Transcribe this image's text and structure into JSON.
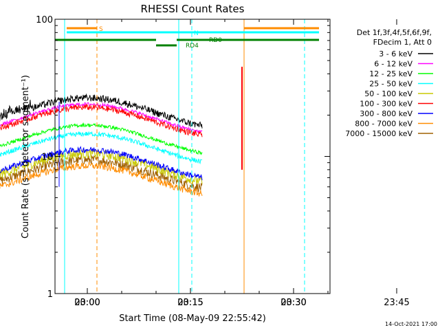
{
  "chart_data": {
    "type": "line",
    "title": "RHESSI Count Rates",
    "xlabel": "Start Time (08-May-09 22:55:42)",
    "ylabel": "Count Rate (s⁻¹ detector segment⁻¹)",
    "yscale": "log",
    "ylim": [
      1,
      100
    ],
    "xlim_minutes": [
      -4.7,
      35.3
    ],
    "x_unit": "minutes relative to 2009-05-09 00:00 UT",
    "x_ticks": [
      {
        "label": "23:00",
        "m": -60
      },
      {
        "label": "23:15",
        "m": -45
      },
      {
        "label": "23:30",
        "m": -30
      },
      {
        "label": "23:45",
        "m": -15
      },
      {
        "label": "00:00",
        "m": 0
      },
      {
        "label": "00:15",
        "m": 15
      },
      {
        "label": "00:30",
        "m": 30
      }
    ],
    "y_ticks": [
      {
        "label": "1",
        "v": 1
      },
      {
        "label": "10",
        "v": 10
      },
      {
        "label": "100",
        "v": 100
      }
    ],
    "legend_header": [
      "Det 1f,3f,4f,5f,6f,9f,",
      "FDecim 1, Att 0"
    ],
    "series": [
      {
        "name": "3 - 6 keV",
        "color": "#000000"
      },
      {
        "name": "6 - 12 keV",
        "color": "#ff00ff"
      },
      {
        "name": "12 - 25 keV",
        "color": "#00ff00"
      },
      {
        "name": "25 - 50 keV",
        "color": "#00ffff"
      },
      {
        "name": "50 - 100 keV",
        "color": "#c8c800"
      },
      {
        "name": "100 - 300 keV",
        "color": "#ff0000"
      },
      {
        "name": "300 - 800 keV",
        "color": "#0000ff"
      },
      {
        "name": "800 - 7000 keV",
        "color": "#ff8c00"
      },
      {
        "name": "7000 - 15000 keV",
        "color": "#a06000"
      }
    ],
    "annotations": [
      {
        "label": "S",
        "color": "#ff8c00"
      },
      {
        "label": "N",
        "color": "#00ffff"
      },
      {
        "label": "RD0",
        "color": "#008000"
      },
      {
        "label": "RD4",
        "color": "#008000"
      }
    ]
  },
  "footer": {
    "timestamp": "14-Oct-2021 17:00"
  }
}
